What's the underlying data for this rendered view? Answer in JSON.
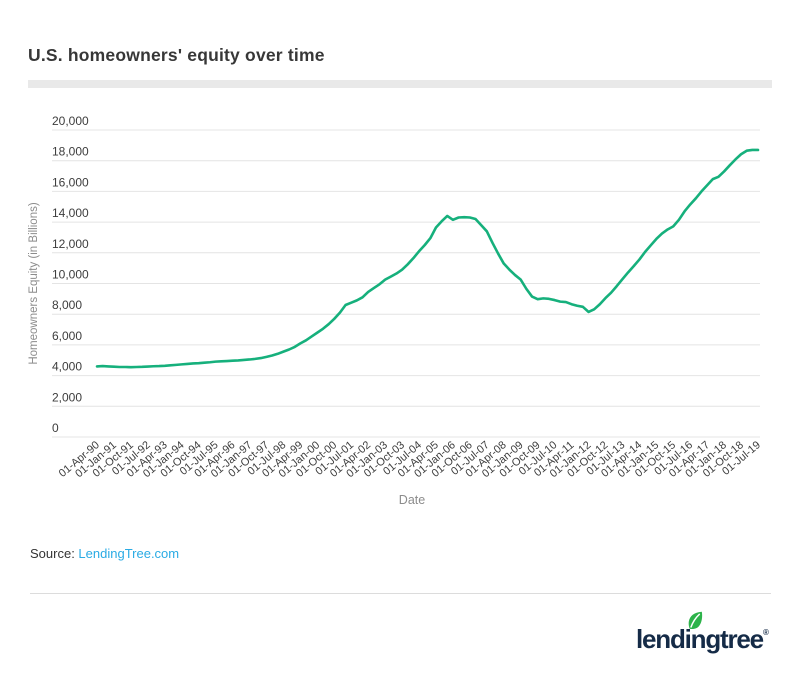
{
  "header": {
    "title": "U.S. homeowners' equity over time"
  },
  "footer": {
    "source_label": "Source: ",
    "source_link": "LendingTree.com",
    "source_link_color": "#2aabe4"
  },
  "logo": {
    "wordmark": "lendingtree",
    "registered": "®",
    "text_color": "#152b47",
    "leaf_color": "#2db34a"
  },
  "chart_data": {
    "type": "line",
    "title": "U.S. homeowners' equity over time",
    "xlabel": "Date",
    "ylabel": "Homeowners Equity (in Billions)",
    "ylim": [
      0,
      20000
    ],
    "yticks": [
      0,
      2000,
      4000,
      6000,
      8000,
      10000,
      12000,
      14000,
      16000,
      18000,
      20000
    ],
    "grid": true,
    "legend_position": "none",
    "line_color": "#16b07c",
    "grid_color": "#e4e4e4",
    "tick_label_color": "#3d3d3d",
    "axis_title_color": "#8c8c8c",
    "points_per_xtick": 3,
    "xticklabels": [
      "01-Apr-90",
      "01-Jan-91",
      "01-Oct-91",
      "01-Jul-92",
      "01-Apr-93",
      "01-Jan-94",
      "01-Oct-94",
      "01-Jul-95",
      "01-Apr-96",
      "01-Jan-97",
      "01-Oct-97",
      "01-Jul-98",
      "01-Apr-99",
      "01-Jan-00",
      "01-Oct-00",
      "01-Jul-01",
      "01-Apr-02",
      "01-Jan-03",
      "01-Oct-03",
      "01-Jul-04",
      "01-Apr-05",
      "01-Jan-06",
      "01-Oct-06",
      "01-Jul-07",
      "01-Apr-08",
      "01-Jan-09",
      "01-Oct-09",
      "01-Jul-10",
      "01-Apr-11",
      "01-Jan-12",
      "01-Oct-12",
      "01-Jul-13",
      "01-Apr-14",
      "01-Jan-15",
      "01-Oct-15",
      "01-Jul-16",
      "01-Apr-17",
      "01-Jan-18",
      "01-Oct-18",
      "01-Jul-19"
    ],
    "values": [
      4600,
      4620,
      4600,
      4580,
      4560,
      4560,
      4550,
      4560,
      4570,
      4590,
      4610,
      4620,
      4640,
      4670,
      4700,
      4730,
      4760,
      4790,
      4810,
      4840,
      4870,
      4910,
      4930,
      4950,
      4970,
      4990,
      5020,
      5050,
      5090,
      5140,
      5220,
      5310,
      5420,
      5560,
      5700,
      5870,
      6100,
      6300,
      6550,
      6800,
      7050,
      7350,
      7700,
      8100,
      8600,
      8750,
      8900,
      9100,
      9450,
      9700,
      9950,
      10250,
      10450,
      10650,
      10900,
      11250,
      11650,
      12100,
      12500,
      12950,
      13650,
      14050,
      14400,
      14150,
      14300,
      14320,
      14300,
      14200,
      13800,
      13400,
      12650,
      11950,
      11300,
      10900,
      10550,
      10250,
      9650,
      9150,
      8980,
      9030,
      9000,
      8920,
      8820,
      8790,
      8650,
      8550,
      8480,
      8150,
      8320,
      8650,
      9050,
      9400,
      9830,
      10280,
      10720,
      11130,
      11560,
      12050,
      12480,
      12900,
      13250,
      13520,
      13720,
      14150,
      14700,
      15150,
      15550,
      16000,
      16400,
      16800,
      16950,
      17300,
      17700,
      18080,
      18420,
      18650,
      18700,
      18700
    ]
  }
}
